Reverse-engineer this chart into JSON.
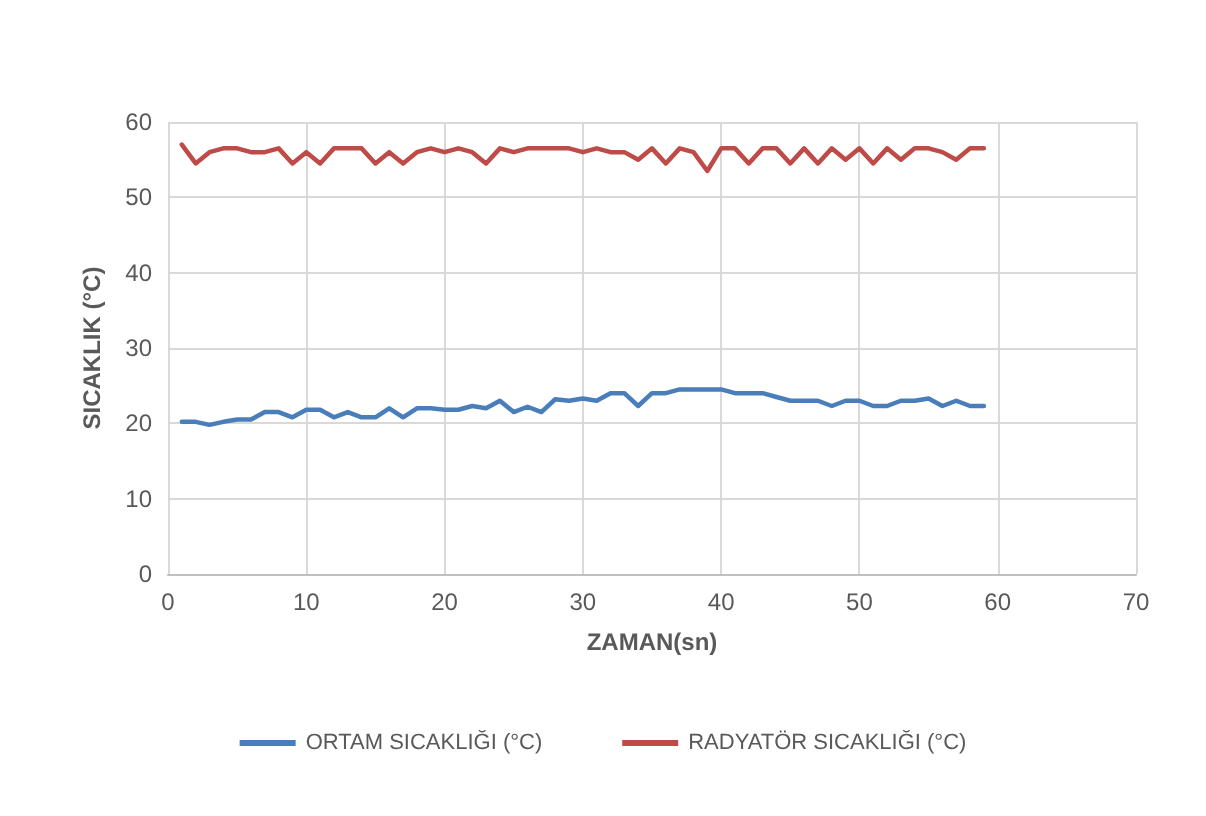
{
  "chart_data": {
    "type": "line",
    "xlabel": "ZAMAN(sn)",
    "ylabel": "SICAKLIK (°C)",
    "x": [
      1,
      2,
      3,
      4,
      5,
      6,
      7,
      8,
      9,
      10,
      11,
      12,
      13,
      14,
      15,
      16,
      17,
      18,
      19,
      20,
      21,
      22,
      23,
      24,
      25,
      26,
      27,
      28,
      29,
      30,
      31,
      32,
      33,
      34,
      35,
      36,
      37,
      38,
      39,
      40,
      41,
      42,
      43,
      44,
      45,
      46,
      47,
      48,
      49,
      50,
      51,
      52,
      53,
      54,
      55,
      56,
      57,
      58,
      59
    ],
    "series": [
      {
        "name": "ORTAM SICAKLIĞI (°C)",
        "color": "#4a7ebb",
        "values": [
          20.2,
          20.2,
          19.8,
          20.2,
          20.5,
          20.5,
          21.5,
          21.5,
          20.8,
          21.8,
          21.8,
          20.8,
          21.5,
          20.8,
          20.8,
          22,
          20.8,
          22,
          22,
          21.8,
          21.8,
          22.3,
          22,
          23,
          21.5,
          22.2,
          21.5,
          23.2,
          23,
          23.3,
          23,
          24,
          24,
          22.3,
          24,
          24,
          24.5,
          24.5,
          24.5,
          24.5,
          24,
          24,
          24,
          23.5,
          23,
          23,
          23,
          22.3,
          23,
          23,
          22.3,
          22.3,
          23,
          23,
          23.3,
          22.3,
          23,
          22.3,
          22.3
        ]
      },
      {
        "name": "RADYATÖR SICAKLIĞI (°C)",
        "color": "#be4b48",
        "values": [
          57,
          54.5,
          56,
          56.5,
          56.5,
          56,
          56,
          56.5,
          54.5,
          56,
          54.5,
          56.5,
          56.5,
          56.5,
          54.5,
          56,
          54.5,
          56,
          56.5,
          56,
          56.5,
          56,
          54.5,
          56.5,
          56,
          56.5,
          56.5,
          56.5,
          56.5,
          56,
          56.5,
          56,
          56,
          55,
          56.5,
          54.5,
          56.5,
          56,
          53.5,
          56.5,
          56.5,
          54.5,
          56.5,
          56.5,
          54.5,
          56.5,
          54.5,
          56.5,
          55,
          56.5,
          54.5,
          56.5,
          55,
          56.5,
          56.5,
          56,
          55,
          56.5,
          56.5
        ]
      }
    ],
    "xlim": [
      0,
      70
    ],
    "xticks": [
      0,
      10,
      20,
      30,
      40,
      50,
      60,
      70
    ],
    "ylim": [
      0,
      60
    ],
    "yticks": [
      0,
      10,
      20,
      30,
      40,
      50,
      60
    ],
    "grid": true,
    "legend": "bottom",
    "marker": "none",
    "line_style": "solid"
  }
}
